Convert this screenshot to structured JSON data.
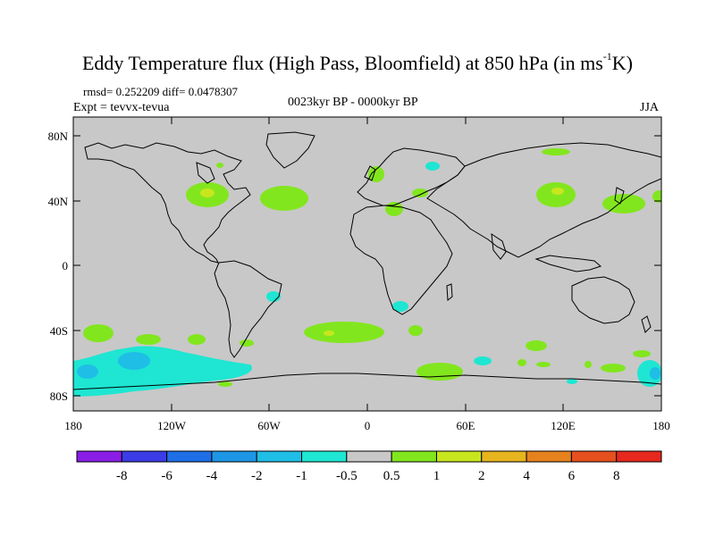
{
  "title": {
    "main": "Eddy Temperature flux (High Pass, Bloomfield) at 850 hPa (in ms",
    "sup": "-1",
    "tail": "K)"
  },
  "stats": "rmsd= 0.252209 diff= 0.0478307",
  "expt": "Expt = tevvx-tevua",
  "period": "0023kyr BP - 0000kyr BP",
  "season": "JJA",
  "y_ticks": [
    "80N",
    "40N",
    "0",
    "40S",
    "80S"
  ],
  "x_ticks": [
    "180",
    "120W",
    "60W",
    "0",
    "60E",
    "120E",
    "180"
  ],
  "colorbar": {
    "labels": [
      "-8",
      "-6",
      "-4",
      "-2",
      "-1",
      "-0.5",
      "0.5",
      "1",
      "2",
      "4",
      "6",
      "8"
    ],
    "colors": [
      "#8a1ee6",
      "#3c3ce6",
      "#1e6ee6",
      "#1e96e6",
      "#1ebee6",
      "#1ee6d2",
      "#c8c8c8",
      "#82e61e",
      "#c8e61e",
      "#e6b41e",
      "#e6821e",
      "#e6501e",
      "#e6281e"
    ]
  },
  "colors": {
    "land_ocean_fill": "#c8c8c8",
    "coast": "#000000"
  }
}
